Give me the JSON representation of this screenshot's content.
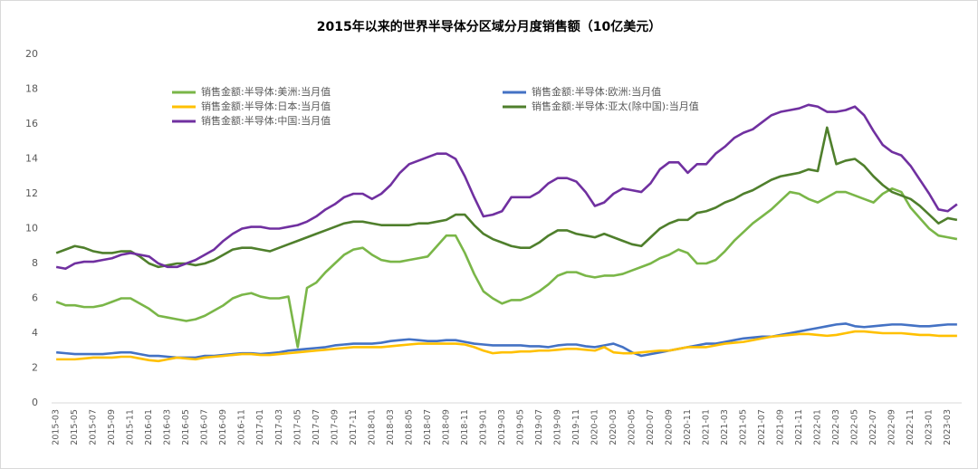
{
  "chart_data": {
    "type": "line",
    "title": "2015年以来的世界半导体分区域分月度销售额（10亿美元）",
    "categories": [
      "2015-03",
      null,
      "2015-05",
      null,
      "2015-07",
      null,
      "2015-09",
      null,
      "2015-11",
      null,
      "2016-01",
      null,
      "2016-03",
      null,
      "2016-05",
      null,
      "2016-07",
      null,
      "2016-09",
      null,
      "2016-11",
      null,
      "2017-01",
      null,
      "2017-03",
      null,
      "2017-05",
      null,
      "2017-07",
      null,
      "2017-09",
      null,
      "2017-11",
      null,
      "2018-01",
      null,
      "2018-03",
      null,
      "2018-05",
      null,
      "2018-07",
      null,
      "2018-09",
      null,
      "2018-11",
      null,
      "2019-01",
      null,
      "2019-03",
      null,
      "2019-05",
      null,
      "2019-07",
      null,
      "2019-09",
      null,
      "2019-11",
      null,
      "2020-01",
      null,
      "2020-03",
      null,
      "2020-05",
      null,
      "2020-07",
      null,
      "2020-09",
      null,
      "2020-11",
      null,
      "2021-01",
      null,
      "2021-03",
      null,
      "2021-05",
      null,
      "2021-07",
      null,
      "2021-09",
      null,
      "2021-11",
      null,
      "2022-01",
      null,
      "2022-03",
      null,
      "2022-05",
      null,
      "2022-07",
      null,
      "2022-09",
      null,
      "2022-11",
      null,
      "2023-01",
      null,
      "2023-03",
      null
    ],
    "series": [
      {
        "name": "销售金额:半导体:美洲:当月值",
        "color": "#7ab648",
        "values": [
          5.8,
          5.6,
          5.6,
          5.5,
          5.5,
          5.6,
          5.8,
          6.0,
          6.0,
          5.7,
          5.4,
          5.0,
          4.9,
          4.8,
          4.7,
          4.8,
          5.0,
          5.3,
          5.6,
          6.0,
          6.2,
          6.3,
          6.1,
          6.0,
          6.0,
          6.1,
          3.2,
          6.6,
          6.9,
          7.5,
          8.0,
          8.5,
          8.8,
          8.9,
          8.5,
          8.2,
          8.1,
          8.1,
          8.2,
          8.3,
          8.4,
          9.0,
          9.6,
          9.6,
          8.6,
          7.4,
          6.4,
          6.0,
          5.7,
          5.9,
          5.9,
          6.1,
          6.4,
          6.8,
          7.3,
          7.5,
          7.5,
          7.3,
          7.2,
          7.3,
          7.3,
          7.4,
          7.6,
          7.8,
          8.0,
          8.3,
          8.5,
          8.8,
          8.6,
          8.0,
          8.0,
          8.2,
          8.7,
          9.3,
          9.8,
          10.3,
          10.7,
          11.1,
          11.6,
          12.1,
          12.0,
          11.7,
          11.5,
          11.8,
          12.1,
          12.1,
          11.9,
          11.7,
          11.5,
          12.0,
          12.3,
          12.1,
          11.2,
          10.6,
          10.0,
          9.6,
          9.5,
          9.4
        ]
      },
      {
        "name": "销售金额:半导体:欧洲:当月值",
        "color": "#4472c4",
        "values": [
          2.9,
          2.85,
          2.8,
          2.8,
          2.8,
          2.8,
          2.85,
          2.9,
          2.9,
          2.8,
          2.7,
          2.7,
          2.65,
          2.6,
          2.6,
          2.6,
          2.7,
          2.7,
          2.75,
          2.8,
          2.85,
          2.85,
          2.8,
          2.85,
          2.9,
          3.0,
          3.05,
          3.1,
          3.15,
          3.2,
          3.3,
          3.35,
          3.4,
          3.4,
          3.4,
          3.45,
          3.55,
          3.6,
          3.65,
          3.6,
          3.55,
          3.55,
          3.6,
          3.6,
          3.5,
          3.4,
          3.35,
          3.3,
          3.3,
          3.3,
          3.3,
          3.25,
          3.25,
          3.2,
          3.3,
          3.35,
          3.35,
          3.25,
          3.2,
          3.3,
          3.4,
          3.2,
          2.9,
          2.7,
          2.8,
          2.9,
          3.0,
          3.1,
          3.2,
          3.3,
          3.4,
          3.4,
          3.5,
          3.6,
          3.7,
          3.75,
          3.8,
          3.8,
          3.9,
          4.0,
          4.1,
          4.2,
          4.3,
          4.4,
          4.5,
          4.55,
          4.4,
          4.35,
          4.4,
          4.45,
          4.5,
          4.5,
          4.45,
          4.4,
          4.4,
          4.45,
          4.5,
          4.5
        ]
      },
      {
        "name": "销售金额:半导体:日本:当月值",
        "color": "#ffc000",
        "values": [
          2.5,
          2.5,
          2.5,
          2.55,
          2.6,
          2.6,
          2.6,
          2.65,
          2.65,
          2.55,
          2.45,
          2.4,
          2.5,
          2.6,
          2.55,
          2.5,
          2.6,
          2.65,
          2.7,
          2.75,
          2.8,
          2.8,
          2.75,
          2.75,
          2.8,
          2.85,
          2.9,
          2.95,
          3.0,
          3.05,
          3.1,
          3.15,
          3.2,
          3.2,
          3.2,
          3.2,
          3.25,
          3.3,
          3.35,
          3.4,
          3.4,
          3.4,
          3.4,
          3.4,
          3.35,
          3.2,
          3.0,
          2.85,
          2.9,
          2.9,
          2.95,
          2.95,
          3.0,
          3.0,
          3.05,
          3.1,
          3.1,
          3.05,
          3.0,
          3.2,
          2.9,
          2.85,
          2.85,
          2.9,
          2.95,
          3.0,
          3.0,
          3.1,
          3.2,
          3.2,
          3.2,
          3.3,
          3.4,
          3.45,
          3.5,
          3.6,
          3.7,
          3.8,
          3.85,
          3.9,
          3.95,
          3.95,
          3.9,
          3.85,
          3.9,
          4.0,
          4.1,
          4.1,
          4.05,
          4.0,
          4.0,
          4.0,
          3.95,
          3.9,
          3.9,
          3.85,
          3.85,
          3.85
        ]
      },
      {
        "name": "销售金额:半导体:亚太(除中国):当月值",
        "color": "#4f7f2c",
        "values": [
          8.6,
          8.8,
          9.0,
          8.9,
          8.7,
          8.6,
          8.6,
          8.7,
          8.7,
          8.4,
          8.0,
          7.8,
          7.9,
          8.0,
          8.0,
          7.9,
          8.0,
          8.2,
          8.5,
          8.8,
          8.9,
          8.9,
          8.8,
          8.7,
          8.9,
          9.1,
          9.3,
          9.5,
          9.7,
          9.9,
          10.1,
          10.3,
          10.4,
          10.4,
          10.3,
          10.2,
          10.2,
          10.2,
          10.2,
          10.3,
          10.3,
          10.4,
          10.5,
          10.8,
          10.8,
          10.2,
          9.7,
          9.4,
          9.2,
          9.0,
          8.9,
          8.9,
          9.2,
          9.6,
          9.9,
          9.9,
          9.7,
          9.6,
          9.5,
          9.7,
          9.5,
          9.3,
          9.1,
          9.0,
          9.5,
          10.0,
          10.3,
          10.5,
          10.5,
          10.9,
          11.0,
          11.2,
          11.5,
          11.7,
          12.0,
          12.2,
          12.5,
          12.8,
          13.0,
          13.1,
          13.2,
          13.4,
          13.3,
          15.8,
          13.7,
          13.9,
          14.0,
          13.6,
          13.0,
          12.5,
          12.1,
          11.9,
          11.7,
          11.3,
          10.8,
          10.3,
          10.6,
          10.5
        ]
      },
      {
        "name": "销售金额:半导体:中国:当月值",
        "color": "#7030a0",
        "values": [
          7.8,
          7.7,
          8.0,
          8.1,
          8.1,
          8.2,
          8.3,
          8.5,
          8.6,
          8.5,
          8.4,
          8.0,
          7.8,
          7.8,
          8.0,
          8.2,
          8.5,
          8.8,
          9.3,
          9.7,
          10.0,
          10.1,
          10.1,
          10.0,
          10.0,
          10.1,
          10.2,
          10.4,
          10.7,
          11.1,
          11.4,
          11.8,
          12.0,
          12.0,
          11.7,
          12.0,
          12.5,
          13.2,
          13.7,
          13.9,
          14.1,
          14.3,
          14.3,
          14.0,
          13.0,
          11.8,
          10.7,
          10.8,
          11.0,
          11.8,
          11.8,
          11.8,
          12.1,
          12.6,
          12.9,
          12.9,
          12.7,
          12.1,
          11.3,
          11.5,
          12.0,
          12.3,
          12.2,
          12.1,
          12.6,
          13.4,
          13.8,
          13.8,
          13.2,
          13.7,
          13.7,
          14.3,
          14.7,
          15.2,
          15.5,
          15.7,
          16.1,
          16.5,
          16.7,
          16.8,
          16.9,
          17.1,
          17.0,
          16.7,
          16.7,
          16.8,
          17.0,
          16.5,
          15.6,
          14.8,
          14.4,
          14.2,
          13.6,
          12.8,
          12.0,
          11.1,
          11.0,
          11.4
        ]
      }
    ],
    "ylim": [
      0,
      20
    ],
    "yticks": [
      0,
      2,
      4,
      6,
      8,
      10,
      12,
      14,
      16,
      18,
      20
    ],
    "grid": false,
    "legend": "top"
  }
}
